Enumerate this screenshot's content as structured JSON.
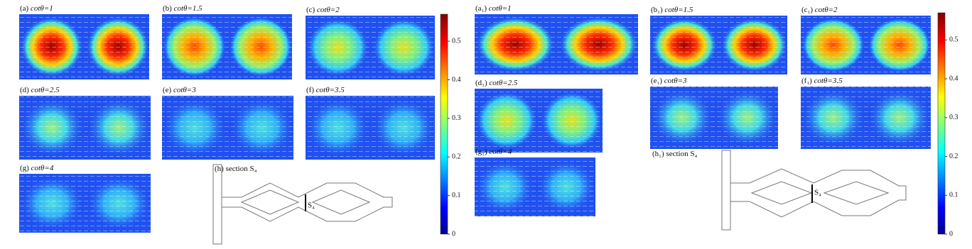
{
  "left": {
    "panels": [
      {
        "tag": "(a)",
        "label": "cotθ=1"
      },
      {
        "tag": "(b)",
        "label": "cotθ=1.5"
      },
      {
        "tag": "(c)",
        "label": "cotθ=2"
      },
      {
        "tag": "(d)",
        "label": "cotθ=2.5"
      },
      {
        "tag": "(e)",
        "label": "cotθ=3"
      },
      {
        "tag": "(f)",
        "label": "cotθ=3.5"
      },
      {
        "tag": "(g)",
        "label": "cotθ=4"
      }
    ],
    "section": {
      "tag": "(h)",
      "label": "section S₄",
      "marker": "S₄"
    },
    "colorbar": {
      "lim": [
        0,
        0.57
      ],
      "ticks": [
        0,
        0.1,
        0.2,
        0.3,
        0.4,
        0.5
      ]
    }
  },
  "right": {
    "panels": [
      {
        "tag": "(a₁)",
        "label": "cotθ=1"
      },
      {
        "tag": "(b₁)",
        "label": "cotθ=1.5"
      },
      {
        "tag": "(c₁)",
        "label": "cotθ=2"
      },
      {
        "tag": "(d₁)",
        "label": "cotθ=2.5"
      },
      {
        "tag": "(e₁)",
        "label": "cotθ=3"
      },
      {
        "tag": "(f₁)",
        "label": "cotθ=3.5"
      },
      {
        "tag": "(g₁)",
        "label": "cotθ=4"
      }
    ],
    "section": {
      "tag": "(h₁)",
      "label": "section S₄",
      "marker": "S₄"
    },
    "colorbar": {
      "lim": [
        0,
        0.57
      ],
      "ticks": [
        0,
        0.1,
        0.2,
        0.3,
        0.4,
        0.5
      ]
    }
  }
}
